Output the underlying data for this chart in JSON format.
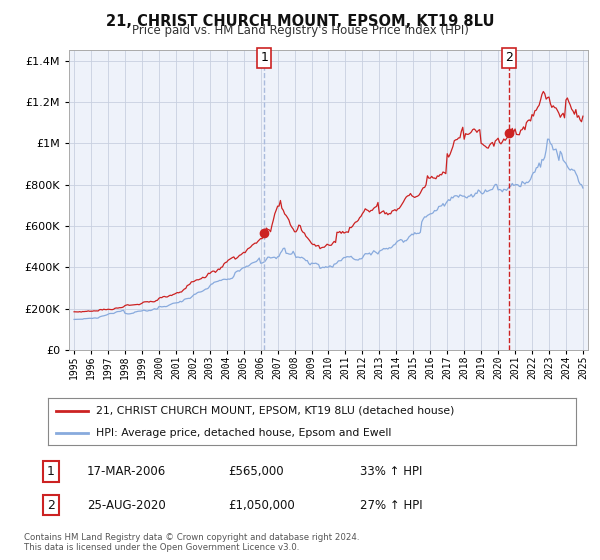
{
  "title": "21, CHRIST CHURCH MOUNT, EPSOM, KT19 8LU",
  "subtitle": "Price paid vs. HM Land Registry's House Price Index (HPI)",
  "legend_line1": "21, CHRIST CHURCH MOUNT, EPSOM, KT19 8LU (detached house)",
  "legend_line2": "HPI: Average price, detached house, Epsom and Ewell",
  "footer1": "Contains HM Land Registry data © Crown copyright and database right 2024.",
  "footer2": "This data is licensed under the Open Government Licence v3.0.",
  "sale1_label": "1",
  "sale1_date": "17-MAR-2006",
  "sale1_price": "£565,000",
  "sale1_hpi": "33% ↑ HPI",
  "sale2_label": "2",
  "sale2_date": "25-AUG-2020",
  "sale2_price": "£1,050,000",
  "sale2_hpi": "27% ↑ HPI",
  "sale1_x": 2006.21,
  "sale1_y": 565000,
  "sale2_x": 2020.65,
  "sale2_y": 1050000,
  "vline1_x": 2006.21,
  "vline2_x": 2020.65,
  "xlim": [
    1994.7,
    2025.3
  ],
  "ylim": [
    0,
    1450000
  ],
  "red_color": "#cc2222",
  "blue_color": "#88aadd",
  "vline1_color": "#aabbdd",
  "vline2_color": "#cc2222",
  "background_color": "#ffffff",
  "plot_bg_color": "#eef2fa",
  "grid_color": "#c8d0e0"
}
